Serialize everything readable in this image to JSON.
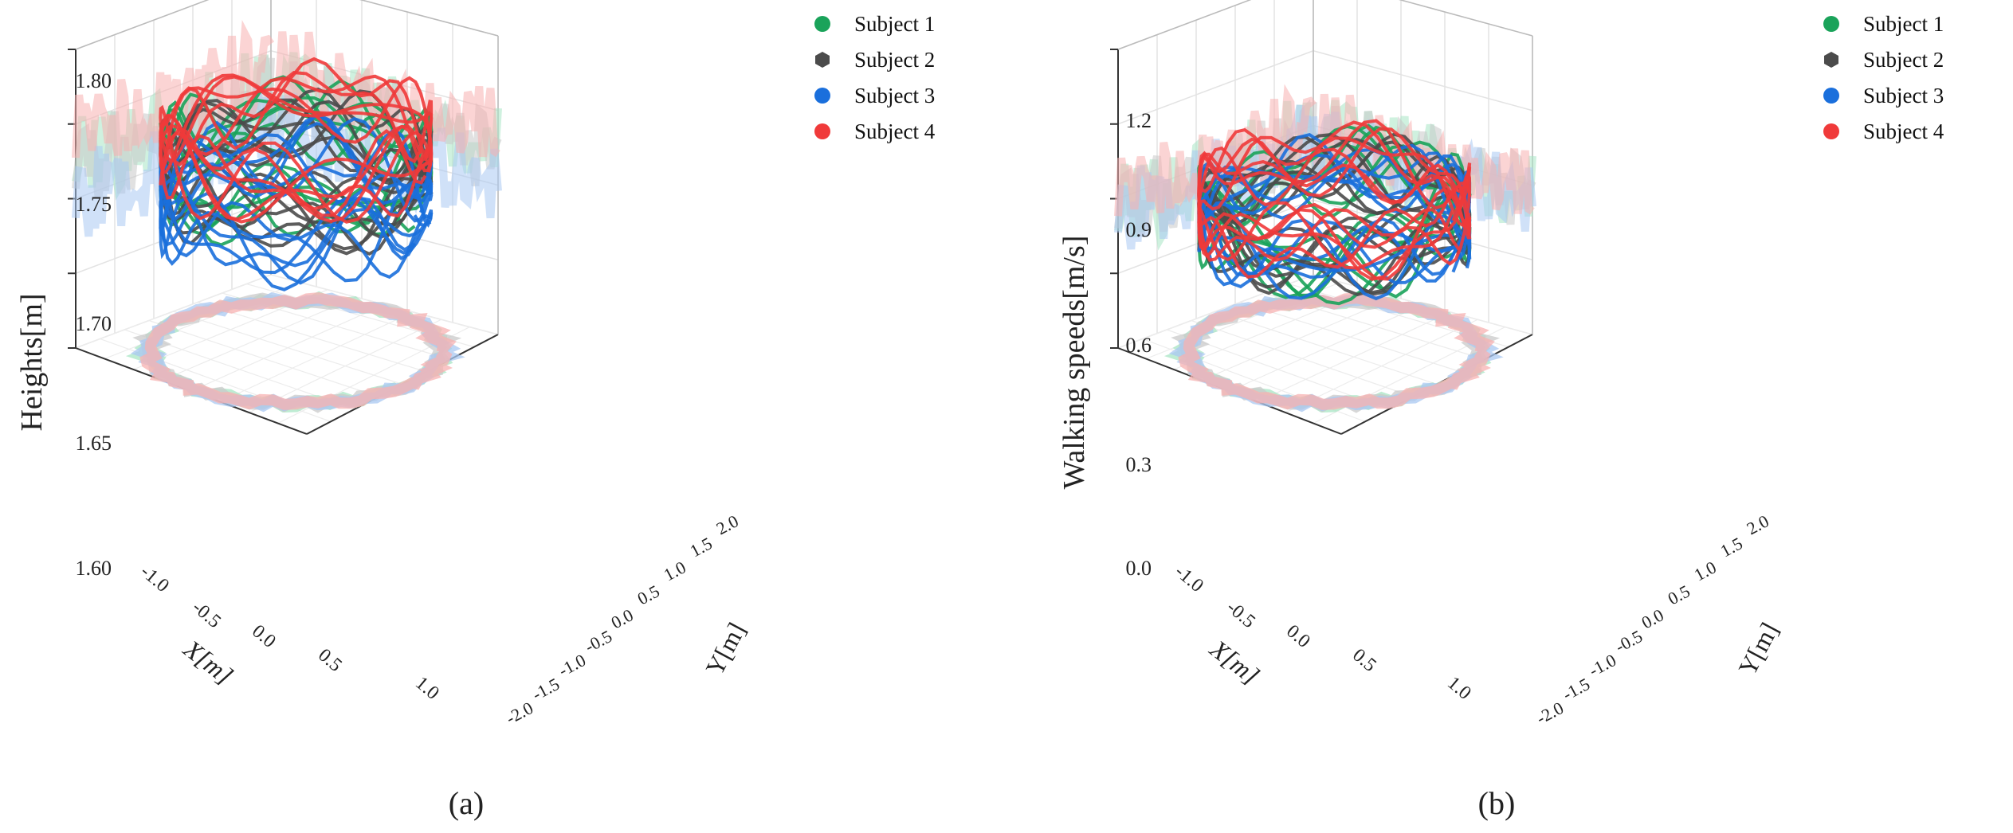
{
  "chart_data": [
    {
      "id": "a",
      "type": "scatter3d",
      "caption": "(a)",
      "zlabel": "Heights[m]",
      "xlabel": "X[m]",
      "ylabel": "Y[m]",
      "zlim": [
        1.6,
        1.8
      ],
      "zticks": [
        "1.60",
        "1.65",
        "1.70",
        "1.75",
        "1.80"
      ],
      "xticks": [
        "-1.0",
        "-0.5",
        "0.0",
        "0.5",
        "1.0"
      ],
      "yticks": [
        "-2.0",
        "-1.5",
        "-1.0",
        "-0.5",
        "0.0",
        "0.5",
        "1.0",
        "1.5",
        "2.0"
      ],
      "legend": [
        "Subject 1",
        "Subject 2",
        "Subject 3",
        "Subject 4"
      ],
      "series": [
        {
          "name": "Subject 1",
          "color": "#1aa35a",
          "z_mean": 1.725,
          "z_amp": 0.03
        },
        {
          "name": "Subject 2",
          "color": "#4b4b4b",
          "z_mean": 1.72,
          "z_amp": 0.03
        },
        {
          "name": "Subject 3",
          "color": "#1a6fdc",
          "z_mean": 1.7,
          "z_amp": 0.03
        },
        {
          "name": "Subject 4",
          "color": "#f03a3a",
          "z_mean": 1.74,
          "z_amp": 0.03
        }
      ]
    },
    {
      "id": "b",
      "type": "scatter3d",
      "caption": "(b)",
      "zlabel": "Walking speeds[m/s]",
      "xlabel": "X[m]",
      "ylabel": "Y[m]",
      "zlim": [
        0.0,
        1.3
      ],
      "zticks": [
        "0.0",
        "0.3",
        "0.6",
        "0.9",
        "1.2"
      ],
      "xticks": [
        "-1.0",
        "-0.5",
        "0.0",
        "0.5",
        "1.0"
      ],
      "yticks": [
        "-2.0",
        "-1.5",
        "-1.0",
        "-0.5",
        "0.0",
        "0.5",
        "1.0",
        "1.5",
        "2.0"
      ],
      "legend": [
        "Subject 1",
        "Subject 2",
        "Subject 3",
        "Subject 4"
      ],
      "series": [
        {
          "name": "Subject 1",
          "color": "#1aa35a",
          "z_mean": 0.6,
          "z_amp": 0.2
        },
        {
          "name": "Subject 2",
          "color": "#4b4b4b",
          "z_mean": 0.6,
          "z_amp": 0.18
        },
        {
          "name": "Subject 3",
          "color": "#1a6fdc",
          "z_mean": 0.58,
          "z_amp": 0.18
        },
        {
          "name": "Subject 4",
          "color": "#f03a3a",
          "z_mean": 0.65,
          "z_amp": 0.18
        }
      ]
    }
  ]
}
